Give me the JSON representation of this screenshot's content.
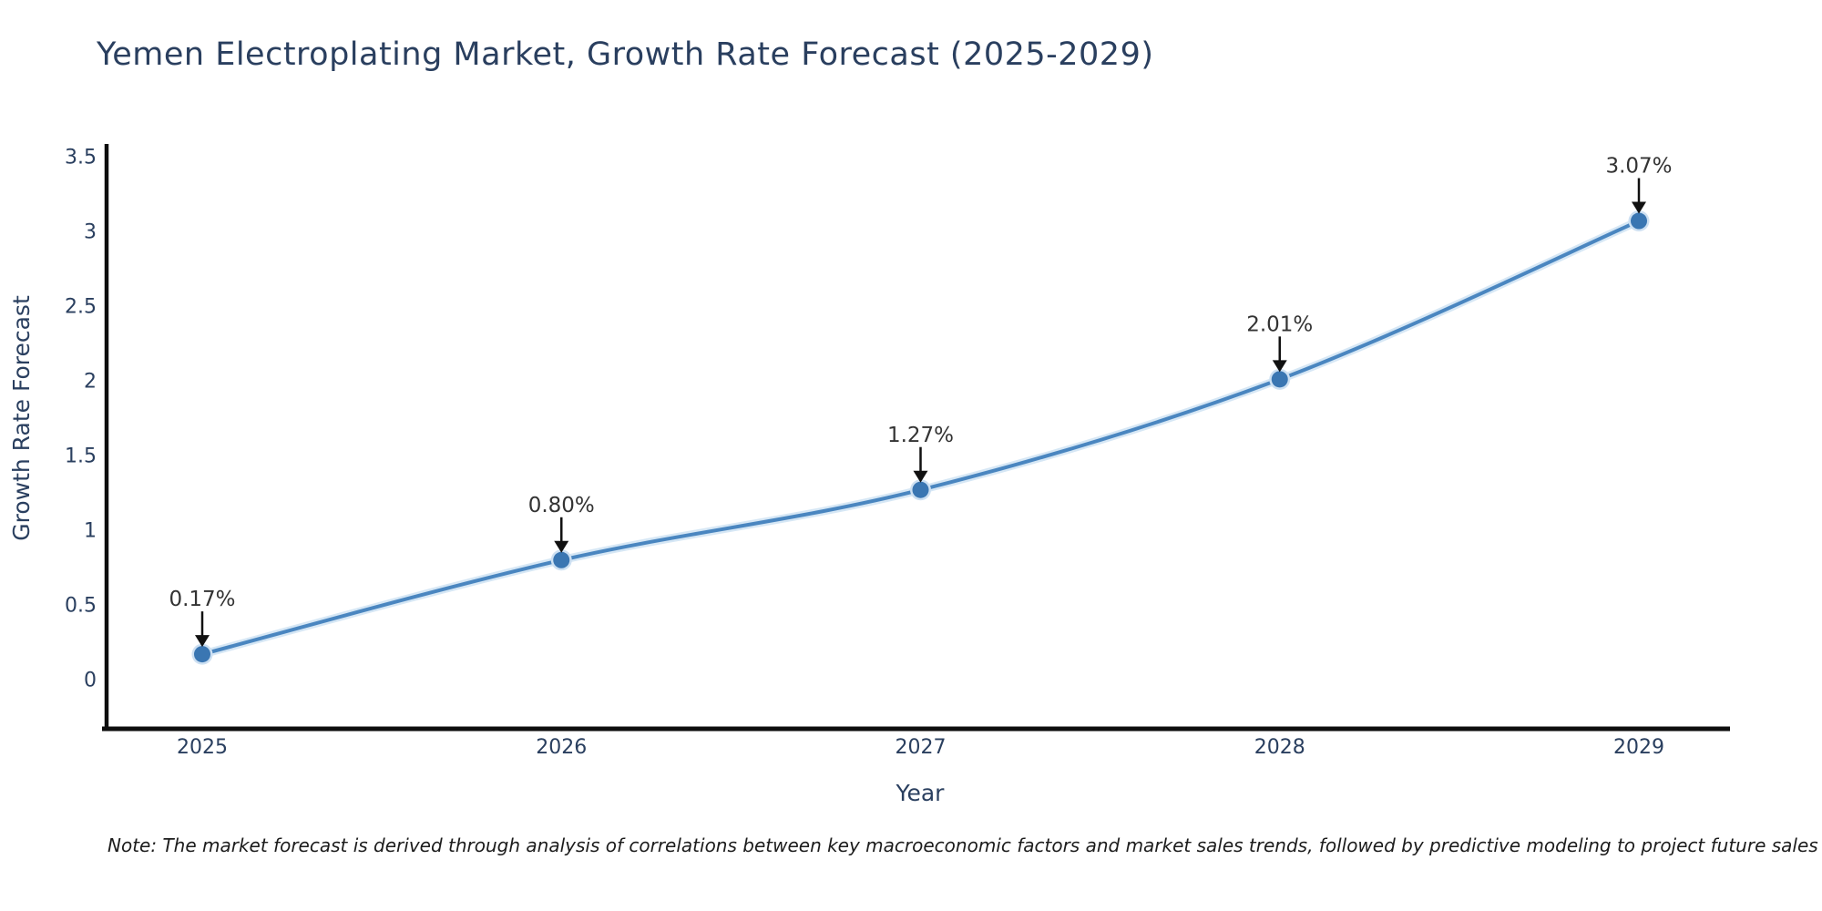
{
  "title": {
    "text": "Yemen Electroplating Market, Growth Rate Forecast (2025-2029)",
    "color": "#2a3f5f"
  },
  "note": {
    "text": "Note: The market forecast is derived through analysis of correlations between key macroeconomic factors and market sales trends, followed by predictive modeling to project future sales"
  },
  "chart_data": {
    "type": "line",
    "title": "Yemen Electroplating Market, Growth Rate Forecast (2025-2029)",
    "xlabel": "Year",
    "ylabel": "Growth Rate Forecast",
    "x": [
      "2025",
      "2026",
      "2027",
      "2028",
      "2029"
    ],
    "series": [
      {
        "name": "Growth Rate Forecast",
        "values": [
          0.17,
          0.8,
          1.27,
          2.01,
          3.07
        ]
      }
    ],
    "point_labels": [
      "0.17%",
      "0.80%",
      "1.27%",
      "2.01%",
      "3.07%"
    ],
    "ylim": [
      0,
      3.5
    ],
    "yticks": [
      0,
      0.5,
      1,
      1.5,
      2,
      2.5,
      3,
      3.5
    ],
    "grid": false,
    "legend": "none",
    "annotation_style": "down-arrow",
    "colors": {
      "line": "#4a86c0",
      "line_halo": "#d6e7f5",
      "marker": "#3a76b2",
      "marker_halo": "#cde0f2",
      "axis": "#0d0d0d",
      "tick_label": "#2a3f5f",
      "axis_title": "#2a3f5f",
      "annotation_text": "#333333",
      "arrow": "#111111"
    }
  }
}
